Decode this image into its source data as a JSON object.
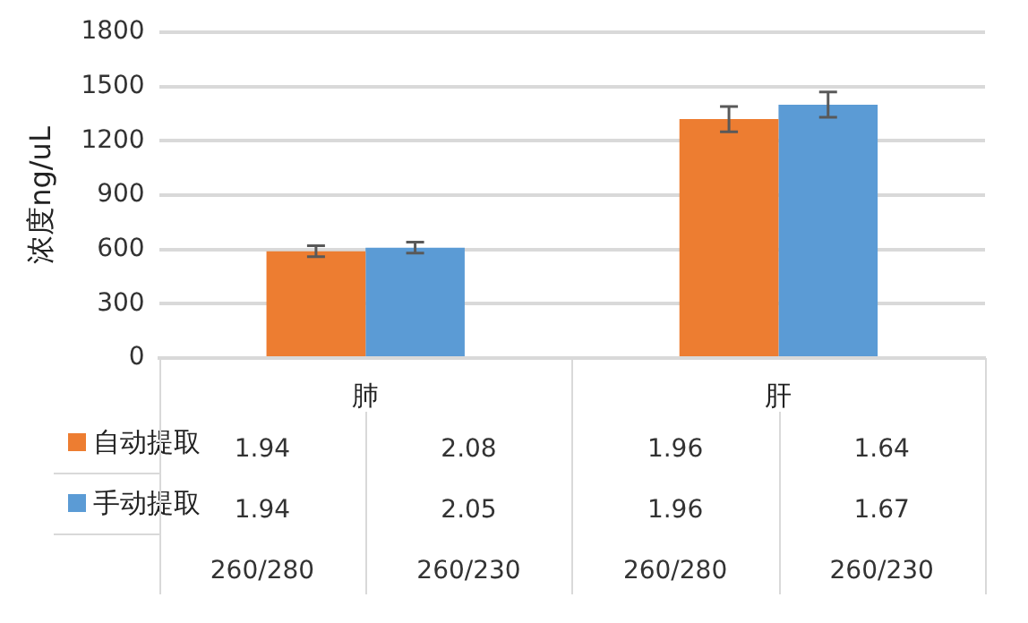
{
  "chart_data": {
    "type": "bar",
    "ylabel": "浓度ng/uL",
    "categories": [
      "肺",
      "肝"
    ],
    "series": [
      {
        "name": "自动提取",
        "color": "#ed7d31",
        "values": [
          590,
          1320
        ],
        "errors": [
          30,
          70
        ]
      },
      {
        "name": "手动提取",
        "color": "#5b9bd5",
        "values": [
          610,
          1400
        ],
        "errors": [
          30,
          70
        ]
      }
    ],
    "ylim": [
      0,
      1800
    ],
    "yticks": [
      0,
      300,
      600,
      900,
      1200,
      1500,
      1800
    ],
    "grid": "y",
    "legend": "bottom",
    "annotations": [
      "1.94",
      "2.08",
      "1.96",
      "1.64",
      "1.94",
      "2.05",
      "1.96",
      "1.67",
      "260/280",
      "260/230",
      "260/280",
      "260/230"
    ]
  }
}
